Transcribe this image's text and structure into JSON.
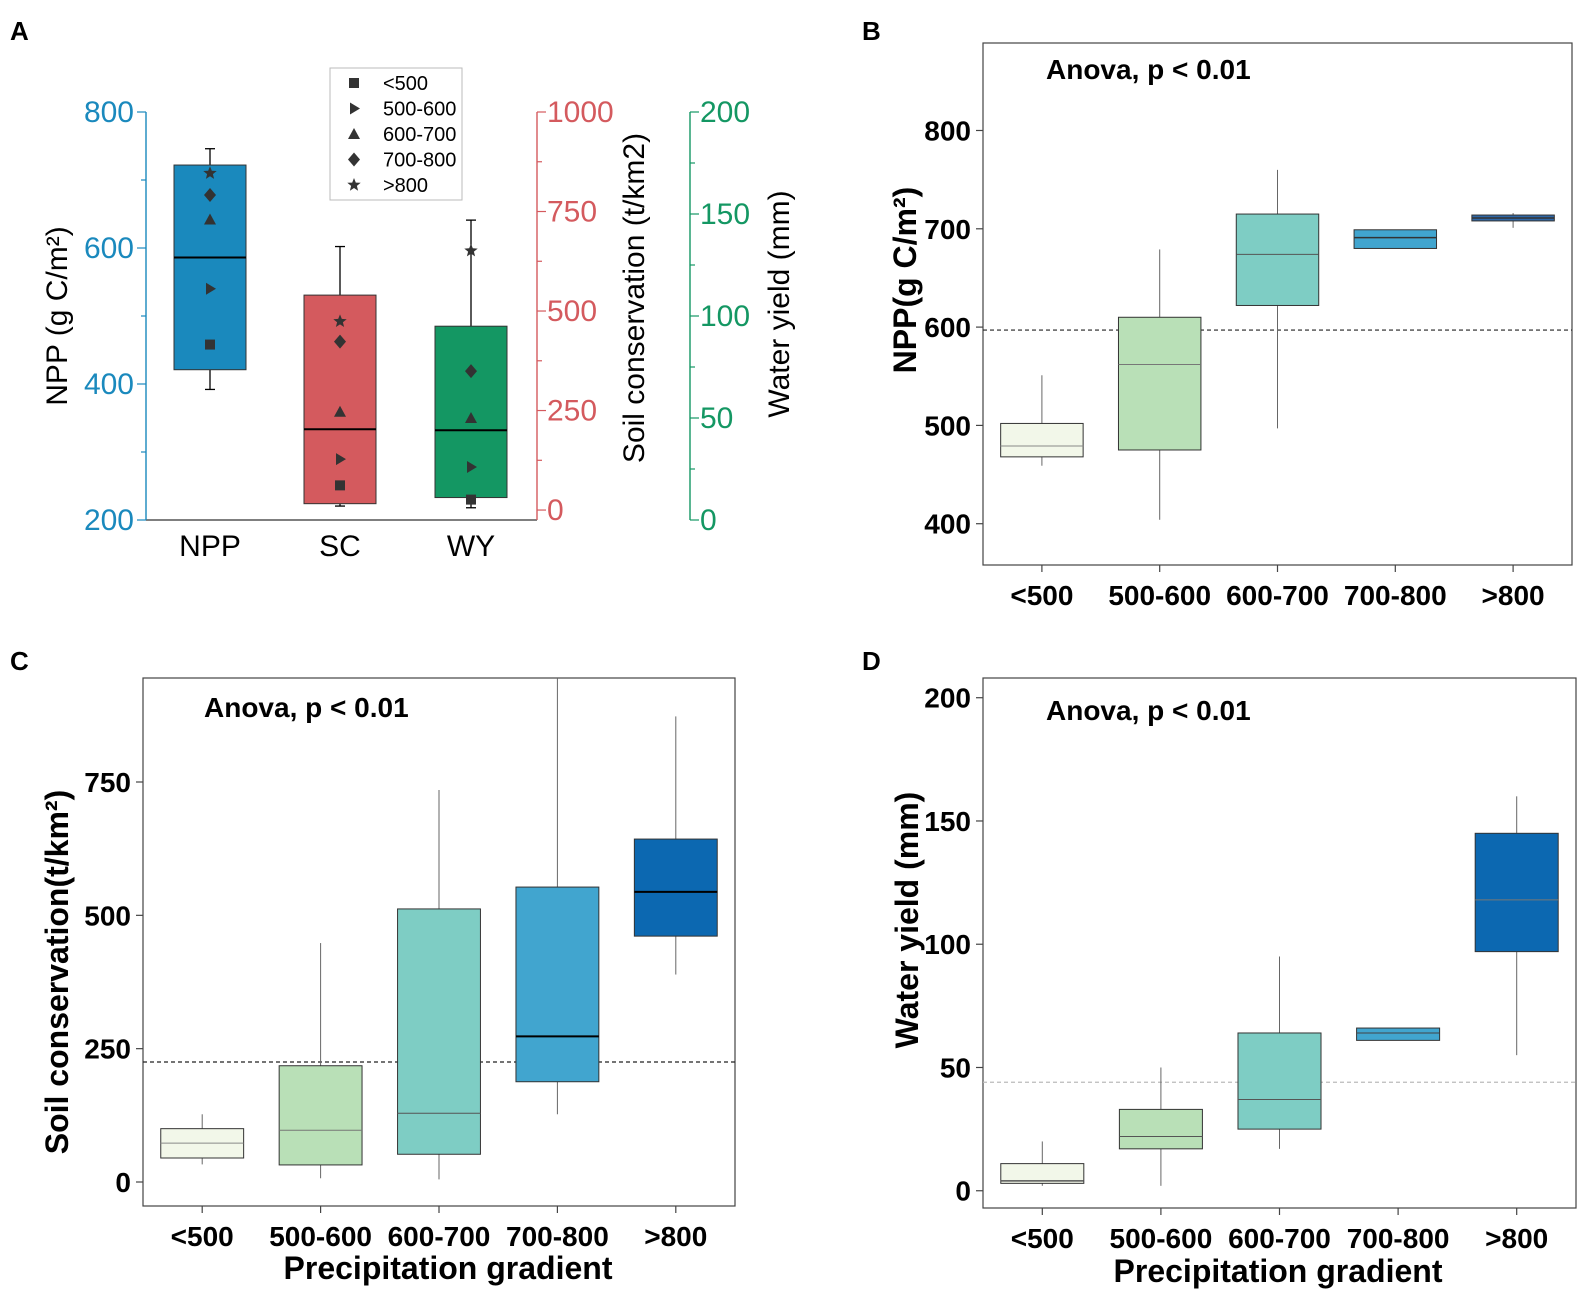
{
  "panel_labels": [
    "A",
    "B",
    "C",
    "D"
  ],
  "colors": {
    "npp": "#1a89bd",
    "sc": "#d45a5e",
    "wy": "#149763",
    "anova_text": "#2f4657",
    "grad": [
      "#f2f7e9",
      "#b9e0b7",
      "#7ecdc4",
      "#41a5cf",
      "#0c68b1"
    ],
    "grad_b_last": "#2f67a7"
  },
  "chart_data": [
    {
      "panel": "A",
      "type": "box",
      "categories": [
        "NPP",
        "SC",
        "WY"
      ],
      "axes": [
        {
          "label": "NPP (g C/m²)",
          "range": [
            200,
            800
          ],
          "ticks": [
            200,
            400,
            600,
            800
          ],
          "tick_labels": [
            "200",
            "400",
            "600",
            "800"
          ]
        },
        {
          "label": "Soil conservation (t/km2)",
          "range": [
            -25,
            1000
          ],
          "ticks": [
            0,
            250,
            500,
            750,
            1000
          ],
          "tick_labels": [
            "0",
            "250",
            "500",
            "750",
            "1000"
          ]
        },
        {
          "label": "Water yield (mm)",
          "range": [
            0,
            200
          ],
          "ticks": [
            0,
            50,
            100,
            150,
            200
          ],
          "tick_labels": [
            "0",
            "50",
            "100",
            "150",
            "200"
          ]
        }
      ],
      "boxes": [
        {
          "name": "NPP",
          "q1": 421,
          "median": 586,
          "q3": 722,
          "min": 392,
          "max": 746
        },
        {
          "name": "SC",
          "q1": 16,
          "median": 203,
          "q3": 540,
          "min": 10,
          "max": 662
        },
        {
          "name": "WY",
          "q1": 11,
          "median": 44,
          "q3": 95,
          "min": 6,
          "max": 147
        }
      ],
      "points": {
        "NPP": [
          {
            "class": "<500",
            "value": 458
          },
          {
            "class": "500-600",
            "value": 540
          },
          {
            "class": "600-700",
            "value": 642
          },
          {
            "class": "700-800",
            "value": 678
          },
          {
            "class": ">800",
            "value": 710
          }
        ],
        "SC": [
          {
            "class": "<500",
            "value": 62
          },
          {
            "class": "500-600",
            "value": 128
          },
          {
            "class": "600-700",
            "value": 247
          },
          {
            "class": "700-800",
            "value": 423
          },
          {
            "class": ">800",
            "value": 474
          }
        ],
        "WY": [
          {
            "class": "<500",
            "value": 10
          },
          {
            "class": "500-600",
            "value": 26
          },
          {
            "class": "600-700",
            "value": 50
          },
          {
            "class": "700-800",
            "value": 73
          },
          {
            "class": ">800",
            "value": 132
          }
        ]
      },
      "legend": {
        "position": "top",
        "entries": [
          {
            "label": "<500",
            "marker": "square"
          },
          {
            "label": "500-600",
            "marker": "triangle-right"
          },
          {
            "label": "600-700",
            "marker": "triangle-up"
          },
          {
            "label": "700-800",
            "marker": "diamond"
          },
          {
            "label": ">800",
            "marker": "star"
          }
        ]
      }
    },
    {
      "panel": "B",
      "type": "box",
      "annotation": "Anova, p < 0.01",
      "ylabel": "NPP(g C/m²)",
      "xlabel": "",
      "categories": [
        "<500",
        "500-600",
        "600-700",
        "700-800",
        ">800"
      ],
      "ylim": [
        358,
        889
      ],
      "yticks": [
        400,
        500,
        600,
        700,
        800
      ],
      "ytick_labels": [
        "400",
        "500",
        "600",
        "700",
        "800"
      ],
      "reference_line": 597,
      "boxes": [
        {
          "q1": 468,
          "median": 479,
          "q3": 502,
          "min": 459,
          "max": 551
        },
        {
          "q1": 475,
          "median": 562,
          "q3": 610,
          "min": 404,
          "max": 679
        },
        {
          "q1": 622,
          "median": 674,
          "q3": 715,
          "min": 497,
          "max": 760
        },
        {
          "q1": 680,
          "median": 691,
          "q3": 699,
          "min": 680,
          "max": 699
        },
        {
          "q1": 708,
          "median": 711,
          "q3": 714,
          "min": 701,
          "max": 716
        }
      ]
    },
    {
      "panel": "C",
      "type": "box",
      "annotation": "Anova, p < 0.01",
      "ylabel": "Soil conservation(t/km²)",
      "xlabel": "Precipitation gradient",
      "categories": [
        "<500",
        "500-600",
        "600-700",
        "700-800",
        ">800"
      ],
      "ylim": [
        -45,
        945
      ],
      "yticks": [
        0,
        250,
        500,
        750
      ],
      "ytick_labels": [
        "0",
        "250",
        "500",
        "750"
      ],
      "reference_line": 225,
      "boxes": [
        {
          "q1": 45,
          "median": 73,
          "q3": 100,
          "min": 33,
          "max": 127
        },
        {
          "q1": 32,
          "median": 97,
          "q3": 218,
          "min": 7,
          "max": 448
        },
        {
          "q1": 52,
          "median": 129,
          "q3": 512,
          "min": 5,
          "max": 735
        },
        {
          "q1": 188,
          "median": 273,
          "q3": 553,
          "min": 127,
          "max": 945
        },
        {
          "q1": 461,
          "median": 544,
          "q3": 643,
          "min": 389,
          "max": 873
        }
      ]
    },
    {
      "panel": "D",
      "type": "box",
      "annotation": "Anova, p < 0.01",
      "ylabel": "Water yield (mm)",
      "xlabel": "Precipitation gradient",
      "categories": [
        "<500",
        "500-600",
        "600-700",
        "700-800",
        ">800"
      ],
      "ylim": [
        -7,
        208
      ],
      "yticks": [
        0,
        50,
        100,
        150,
        200
      ],
      "ytick_labels": [
        "0",
        "50",
        "100",
        "150",
        "200"
      ],
      "reference_line": 44,
      "boxes": [
        {
          "q1": 3,
          "median": 4,
          "q3": 11,
          "min": 2,
          "max": 20
        },
        {
          "q1": 17,
          "median": 22,
          "q3": 33,
          "min": 2,
          "max": 50
        },
        {
          "q1": 25,
          "median": 37,
          "q3": 64,
          "min": 17,
          "max": 95
        },
        {
          "q1": 61,
          "median": 64,
          "q3": 66,
          "min": 61,
          "max": 66
        },
        {
          "q1": 97,
          "median": 118,
          "q3": 145,
          "min": 55,
          "max": 160
        }
      ]
    }
  ]
}
